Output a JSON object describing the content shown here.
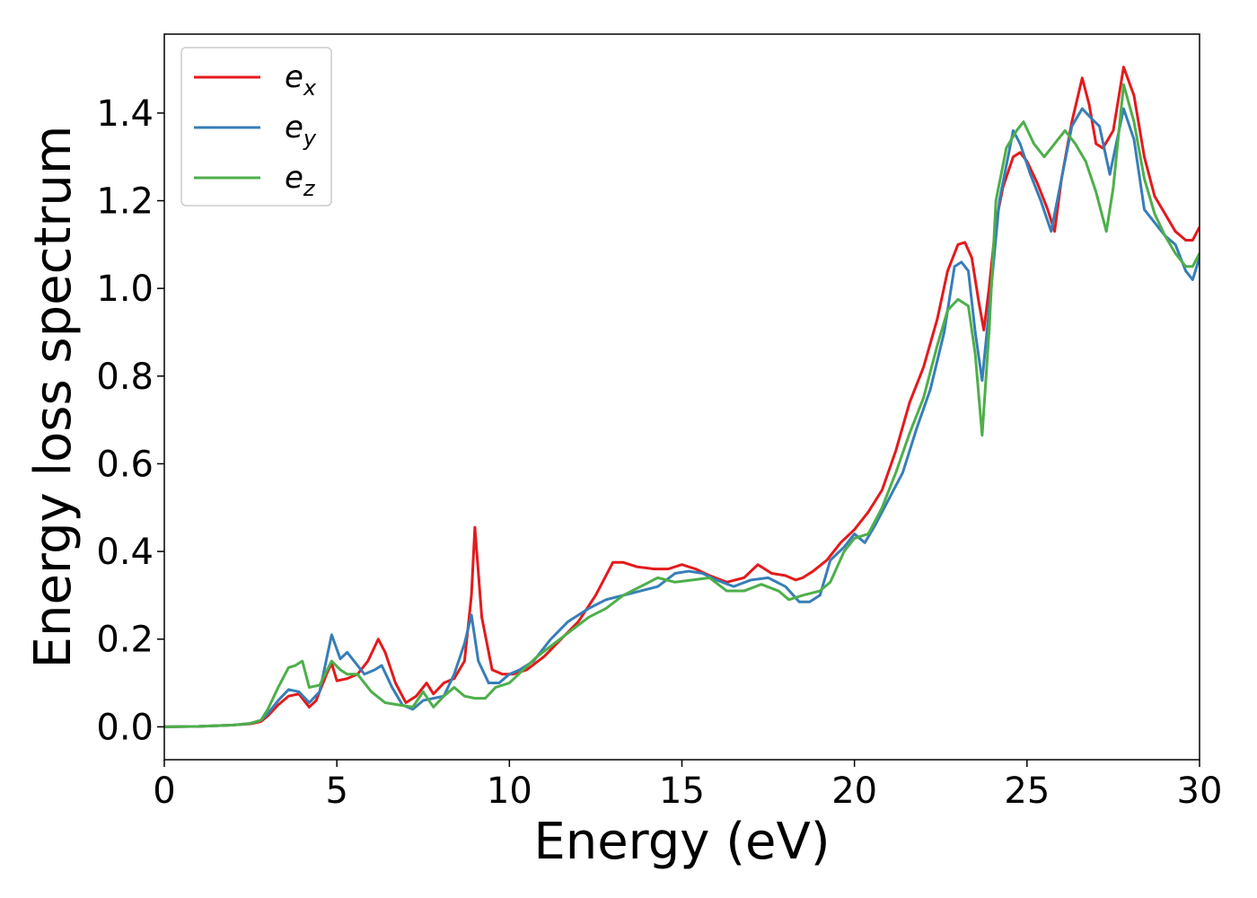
{
  "chart_data": {
    "type": "line",
    "xlabel": "Energy (eV)",
    "ylabel": "Energy loss spectrum",
    "xlim": [
      0,
      30
    ],
    "ylim": [
      -0.075,
      1.58
    ],
    "xticks": [
      0,
      5,
      10,
      15,
      20,
      25,
      30
    ],
    "yticks": [
      0.0,
      0.2,
      0.4,
      0.6,
      0.8,
      1.0,
      1.2,
      1.4
    ],
    "xtick_labels": [
      "0",
      "5",
      "10",
      "15",
      "20",
      "25",
      "30"
    ],
    "ytick_labels": [
      "0.0",
      "0.2",
      "0.4",
      "0.6",
      "0.8",
      "1.0",
      "1.2",
      "1.4"
    ],
    "grid": false,
    "legend_position": "top-left",
    "series": [
      {
        "name": "e",
        "subscript": "x",
        "color": "#e41a1c",
        "x": [
          0,
          1,
          2,
          2.5,
          2.8,
          3.0,
          3.3,
          3.6,
          3.9,
          4.2,
          4.4,
          4.7,
          4.85,
          5.0,
          5.3,
          5.6,
          5.9,
          6.2,
          6.4,
          6.7,
          7.0,
          7.3,
          7.6,
          7.8,
          8.1,
          8.4,
          8.7,
          8.9,
          9.0,
          9.2,
          9.5,
          9.8,
          10.1,
          10.5,
          11,
          11.5,
          12,
          12.5,
          13.0,
          13.3,
          13.7,
          14.2,
          14.6,
          15.0,
          15.4,
          15.8,
          16.3,
          16.8,
          17.2,
          17.6,
          18.0,
          18.3,
          18.5,
          18.8,
          19.2,
          19.6,
          20.0,
          20.4,
          20.8,
          21.2,
          21.6,
          22.0,
          22.4,
          22.7,
          23.0,
          23.2,
          23.4,
          23.6,
          23.75,
          23.9,
          24.1,
          24.3,
          24.6,
          24.8,
          25.0,
          25.3,
          25.6,
          25.8,
          26.0,
          26.3,
          26.6,
          26.8,
          27.0,
          27.2,
          27.5,
          27.8,
          28.1,
          28.4,
          28.7,
          29.0,
          29.3,
          29.6,
          29.8,
          30.0
        ],
        "y": [
          0.0,
          0.001,
          0.004,
          0.007,
          0.012,
          0.025,
          0.05,
          0.07,
          0.075,
          0.045,
          0.06,
          0.12,
          0.145,
          0.105,
          0.11,
          0.12,
          0.15,
          0.2,
          0.17,
          0.1,
          0.055,
          0.07,
          0.1,
          0.075,
          0.1,
          0.11,
          0.15,
          0.3,
          0.455,
          0.25,
          0.13,
          0.12,
          0.12,
          0.13,
          0.16,
          0.2,
          0.24,
          0.3,
          0.375,
          0.375,
          0.365,
          0.36,
          0.36,
          0.37,
          0.36,
          0.345,
          0.33,
          0.34,
          0.37,
          0.35,
          0.345,
          0.335,
          0.34,
          0.355,
          0.38,
          0.42,
          0.45,
          0.49,
          0.54,
          0.63,
          0.74,
          0.82,
          0.93,
          1.04,
          1.1,
          1.105,
          1.07,
          0.97,
          0.905,
          1.0,
          1.15,
          1.23,
          1.3,
          1.31,
          1.29,
          1.24,
          1.18,
          1.13,
          1.25,
          1.38,
          1.48,
          1.42,
          1.33,
          1.32,
          1.36,
          1.505,
          1.44,
          1.3,
          1.21,
          1.17,
          1.13,
          1.11,
          1.11,
          1.14
        ]
      },
      {
        "name": "e",
        "subscript": "y",
        "color": "#377eb8",
        "x": [
          0,
          1,
          2,
          2.5,
          2.8,
          3.0,
          3.3,
          3.6,
          3.9,
          4.2,
          4.5,
          4.85,
          5.1,
          5.3,
          5.5,
          5.8,
          6.1,
          6.3,
          6.6,
          6.9,
          7.2,
          7.5,
          7.8,
          8.1,
          8.4,
          8.7,
          8.9,
          9.1,
          9.4,
          9.7,
          10.0,
          10.3,
          10.7,
          11.2,
          11.7,
          12.3,
          12.8,
          13.3,
          13.8,
          14.3,
          14.8,
          15.2,
          15.6,
          16.0,
          16.5,
          17.0,
          17.5,
          18.0,
          18.4,
          18.7,
          19.0,
          19.3,
          19.7,
          20.0,
          20.3,
          20.6,
          21.0,
          21.4,
          21.8,
          22.2,
          22.6,
          22.9,
          23.1,
          23.3,
          23.5,
          23.7,
          23.9,
          24.2,
          24.6,
          24.8,
          25.1,
          25.4,
          25.7,
          26.0,
          26.3,
          26.6,
          26.9,
          27.1,
          27.4,
          27.8,
          28.1,
          28.4,
          28.7,
          29.0,
          29.3,
          29.6,
          29.8,
          30.0
        ],
        "y": [
          0.0,
          0.001,
          0.004,
          0.008,
          0.015,
          0.03,
          0.06,
          0.085,
          0.08,
          0.055,
          0.08,
          0.21,
          0.155,
          0.17,
          0.15,
          0.12,
          0.13,
          0.14,
          0.09,
          0.05,
          0.04,
          0.06,
          0.065,
          0.07,
          0.12,
          0.19,
          0.255,
          0.15,
          0.1,
          0.1,
          0.12,
          0.13,
          0.15,
          0.2,
          0.24,
          0.27,
          0.29,
          0.3,
          0.31,
          0.32,
          0.35,
          0.355,
          0.35,
          0.335,
          0.32,
          0.335,
          0.34,
          0.32,
          0.285,
          0.285,
          0.3,
          0.38,
          0.41,
          0.44,
          0.42,
          0.46,
          0.52,
          0.58,
          0.68,
          0.77,
          0.9,
          1.05,
          1.06,
          1.04,
          0.9,
          0.79,
          0.95,
          1.2,
          1.36,
          1.33,
          1.26,
          1.2,
          1.13,
          1.25,
          1.37,
          1.41,
          1.385,
          1.37,
          1.26,
          1.41,
          1.34,
          1.18,
          1.15,
          1.12,
          1.1,
          1.04,
          1.02,
          1.07
        ]
      },
      {
        "name": "e",
        "subscript": "z",
        "color": "#4daf4a",
        "x": [
          0,
          1,
          2,
          2.5,
          2.8,
          3.0,
          3.3,
          3.6,
          3.8,
          4.0,
          4.2,
          4.5,
          4.85,
          5.1,
          5.3,
          5.6,
          6.0,
          6.4,
          6.8,
          7.2,
          7.5,
          7.8,
          8.1,
          8.4,
          8.7,
          9.0,
          9.3,
          9.6,
          10.0,
          10.4,
          10.8,
          11.3,
          11.8,
          12.3,
          12.8,
          13.3,
          13.8,
          14.3,
          14.8,
          15.3,
          15.8,
          16.3,
          16.8,
          17.3,
          17.8,
          18.1,
          18.5,
          19.0,
          19.3,
          19.7,
          20.0,
          20.4,
          20.8,
          21.2,
          21.6,
          22.0,
          22.4,
          22.7,
          23.0,
          23.3,
          23.5,
          23.7,
          23.9,
          24.1,
          24.4,
          24.7,
          24.9,
          25.2,
          25.5,
          25.8,
          26.1,
          26.4,
          26.7,
          27.0,
          27.3,
          27.5,
          27.8,
          28.1,
          28.4,
          28.7,
          29.0,
          29.3,
          29.6,
          29.8,
          30.0
        ],
        "y": [
          0.0,
          0.001,
          0.004,
          0.008,
          0.015,
          0.04,
          0.09,
          0.135,
          0.14,
          0.15,
          0.09,
          0.095,
          0.15,
          0.13,
          0.12,
          0.12,
          0.08,
          0.055,
          0.05,
          0.045,
          0.08,
          0.045,
          0.07,
          0.09,
          0.07,
          0.065,
          0.065,
          0.09,
          0.1,
          0.13,
          0.16,
          0.19,
          0.22,
          0.25,
          0.27,
          0.3,
          0.32,
          0.34,
          0.33,
          0.335,
          0.34,
          0.31,
          0.31,
          0.325,
          0.31,
          0.29,
          0.3,
          0.31,
          0.33,
          0.4,
          0.43,
          0.44,
          0.5,
          0.58,
          0.67,
          0.75,
          0.87,
          0.95,
          0.975,
          0.96,
          0.85,
          0.665,
          0.9,
          1.2,
          1.32,
          1.36,
          1.38,
          1.33,
          1.3,
          1.33,
          1.36,
          1.33,
          1.29,
          1.22,
          1.13,
          1.23,
          1.465,
          1.38,
          1.25,
          1.17,
          1.12,
          1.08,
          1.05,
          1.05,
          1.08
        ]
      }
    ]
  }
}
